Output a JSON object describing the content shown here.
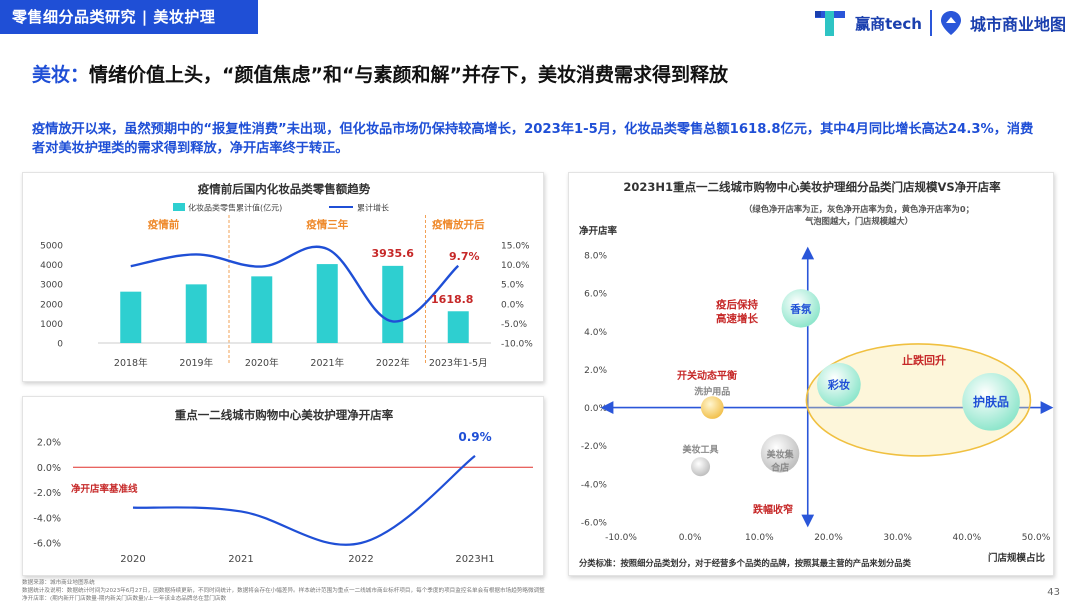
{
  "header": {
    "tag": "零售细分品类研究 | 美妆护理",
    "logo1": "赢商tech",
    "logo2": "城市商业地图"
  },
  "headline": {
    "key": "美妆：",
    "rest": "情绪价值上头，“颜值焦虑”和“与素颜和解”并存下，美妆消费需求得到释放"
  },
  "summary": "疫情放开以来，虽然预期中的“报复性消费”未出现，但化妆品市场仍保持较高增长，2023年1-5月，化妆品类零售总额1618.8亿元，其中4月同比增长高达24.3%，消费者对美妆护理类的需求得到释放，净开店率终于转正。",
  "footer": {
    "line1": "数据来源：城市商业地图系统",
    "line2": "数据统计及说明：数据统计时间为2023年6月27日，因数据持续更新，不同时间统计，数据将会存在小幅差异。样本统计范围为重点一二线城市商业标杆项目，每个季度的项目监控名单会有根据市场趋势略微调整",
    "line3": "净开店率：(期内新开门店数量-期内新关门店数量)/上一年该业态品牌总在营门店数"
  },
  "page_number": "43",
  "colors": {
    "accent": "#1f4fd6",
    "bar": "#2ecfd0",
    "line": "#1f4fd6",
    "red": "#e0312b",
    "orange": "#ef8a2c"
  },
  "chart_data": [
    {
      "type": "bar",
      "title": "疫情前后国内化妆品类零售额趋势",
      "categories": [
        "2018年",
        "2019年",
        "2020年",
        "2021年",
        "2022年",
        "2023年1-5月"
      ],
      "series": [
        {
          "name": "化妆品类零售累计值(亿元)",
          "type": "bar",
          "axis": "left",
          "values": [
            2619,
            2992,
            3400,
            4026,
            3935.6,
            1618.8
          ]
        },
        {
          "name": "累计增长",
          "type": "line",
          "axis": "right",
          "values": [
            9.6,
            12.6,
            9.5,
            14.0,
            -4.5,
            9.7
          ]
        }
      ],
      "y_left": {
        "ticks": [
          "5000",
          "4000",
          "3000",
          "2000",
          "1000",
          "0"
        ],
        "lim": [
          0,
          5000
        ]
      },
      "y_right": {
        "ticks": [
          "15.0%",
          "10.0%",
          "5.0%",
          "0.0%",
          "-5.0%",
          "-10.0%"
        ],
        "lim": [
          -10,
          15
        ]
      },
      "phases": [
        "疫情前",
        "疫情三年",
        "疫情放开后"
      ],
      "data_labels": [
        "3935.6",
        "9.7%",
        "1618.8"
      ]
    },
    {
      "type": "line",
      "title": "重点一二线城市购物中心美妆护理净开店率",
      "categories": [
        "2020",
        "2021",
        "2022",
        "2023H1"
      ],
      "values": [
        -3.2,
        -3.5,
        -6.0,
        0.9
      ],
      "y_ticks": [
        "2.0%",
        "0.0%",
        "-2.0%",
        "-4.0%",
        "-6.0%"
      ],
      "ylim": [
        -6,
        2
      ],
      "baseline_label": "净开店率基准线",
      "end_label": "0.9%"
    },
    {
      "type": "scatter",
      "title": "2023H1重点一二线城市购物中心美妆护理细分品类门店规模VS净开店率",
      "subtitle1": "（绿色净开店率为正，灰色净开店率为负，黄色净开店率为0；",
      "subtitle2": "气泡图越大，门店规模越大）",
      "xlabel": "门店规模占比",
      "ylabel": "净开店率",
      "x_ticks": [
        "-10.0%",
        "0.0%",
        "10.0%",
        "20.0%",
        "30.0%",
        "40.0%",
        "50.0%"
      ],
      "y_ticks": [
        "8.0%",
        "6.0%",
        "4.0%",
        "2.0%",
        "0.0%",
        "-2.0%",
        "-4.0%",
        "-6.0%"
      ],
      "xlim": [
        -10,
        50
      ],
      "ylim": [
        -6,
        8
      ],
      "points": [
        {
          "label": "香氛",
          "x": 16,
          "y": 5.2,
          "size": 10,
          "color": "green"
        },
        {
          "label": "彩妆",
          "x": 21.5,
          "y": 1.2,
          "size": 14,
          "color": "green"
        },
        {
          "label": "护肤品",
          "x": 43.5,
          "y": 0.3,
          "size": 28,
          "color": "green"
        },
        {
          "label": "洗护用品",
          "x": 3.2,
          "y": 0.0,
          "size": 2,
          "color": "yellow"
        },
        {
          "label": "美妆工具",
          "x": 1.5,
          "y": -3.1,
          "size": 1,
          "color": "gray"
        },
        {
          "label": "美妆集合店",
          "x": 13,
          "y": -2.4,
          "size": 10,
          "color": "gray"
        }
      ],
      "annotations": [
        "疫后保持高速增长",
        "止跌回升",
        "开关动态平衡",
        "跌幅收窄"
      ],
      "note": "分类标准：按照细分品类划分，对于经营多个品类的品牌，按照其最主营的产品来划分品类"
    }
  ]
}
